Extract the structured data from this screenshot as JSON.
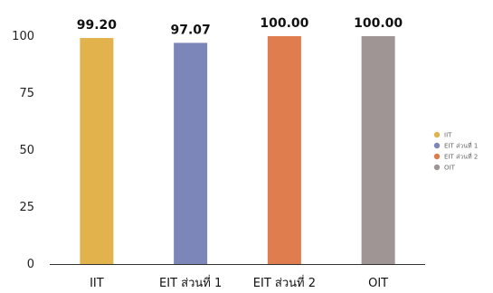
{
  "chart_data": {
    "type": "bar",
    "categories": [
      "IIT",
      "EIT ส่วนที่ 1",
      "EIT ส่วนที่ 2",
      "OIT"
    ],
    "values": [
      99.2,
      97.07,
      100.0,
      100.0
    ],
    "value_labels": [
      "99.20",
      "97.07",
      "100.00",
      "100.00"
    ],
    "colors": [
      "#e2b24d",
      "#7d86b8",
      "#e07d4e",
      "#a09595"
    ],
    "ylim": [
      0,
      100
    ],
    "yticks": [
      0,
      25,
      50,
      75,
      100
    ],
    "title": "",
    "xlabel": "",
    "ylabel": "",
    "grid": false,
    "legend": {
      "position": "right",
      "entries": [
        "IIT",
        "EIT ส่วนที่ 1",
        "EIT ส่วนที่ 2",
        "OIT"
      ]
    }
  }
}
